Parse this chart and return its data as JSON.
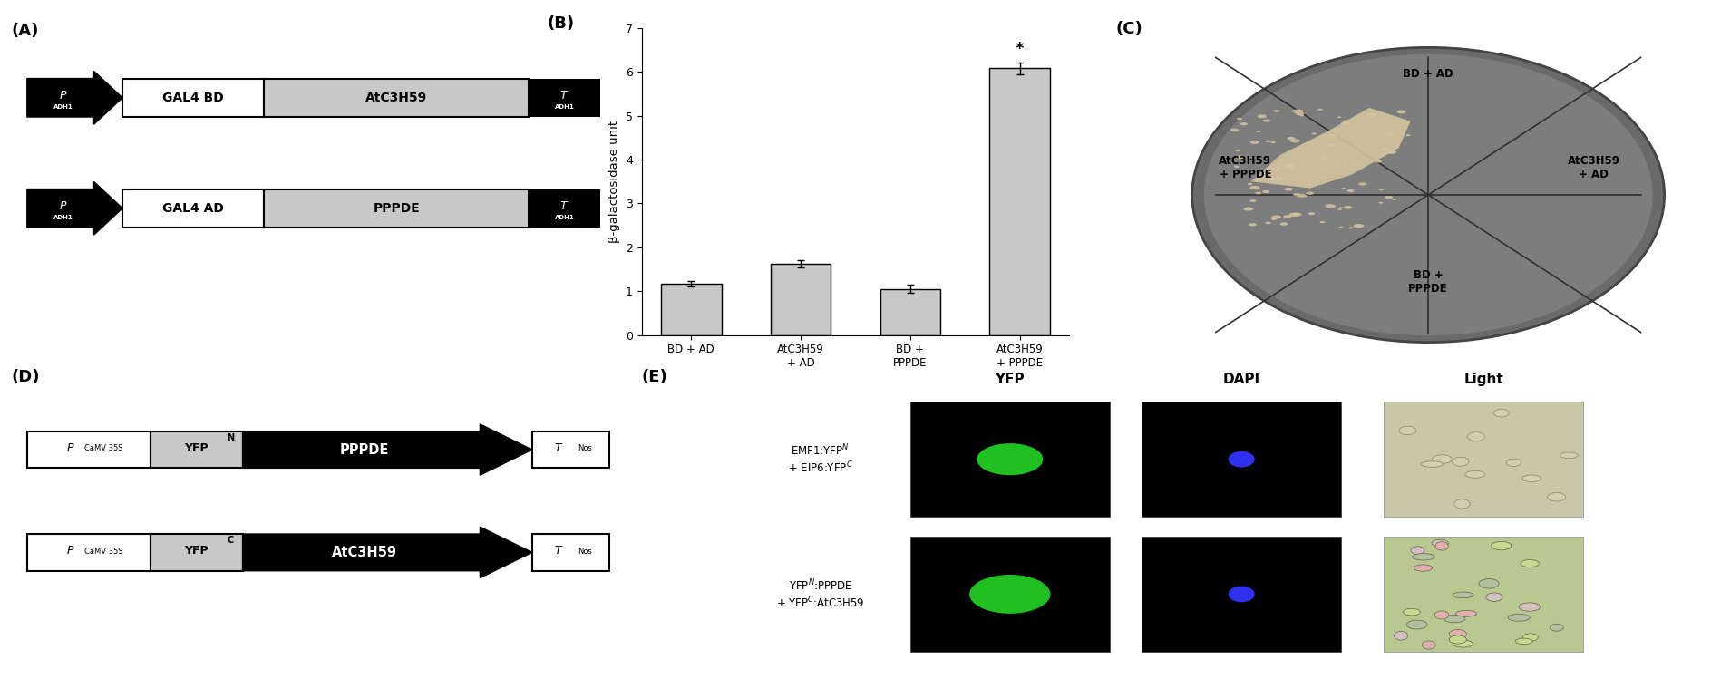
{
  "panel_A": {
    "row1": {
      "box1_text": "GAL4 BD",
      "box2_text": "AtC3H59"
    },
    "row2": {
      "box1_text": "GAL4 AD",
      "box2_text": "PPPDE"
    }
  },
  "panel_B": {
    "categories": [
      "BD + AD",
      "AtC3H59\n+ AD",
      "BD +\nPPPDE",
      "AtC3H59\n+ PPPDE"
    ],
    "values": [
      1.17,
      1.62,
      1.05,
      6.08
    ],
    "errors": [
      0.07,
      0.08,
      0.09,
      0.13
    ],
    "bar_color": "#c8c8c8",
    "ylabel": "β-galactosidase unit",
    "ylim": [
      0,
      7
    ],
    "yticks": [
      0,
      1,
      2,
      3,
      4,
      5,
      6,
      7
    ],
    "star_index": 3
  },
  "panel_D": {
    "row1": {
      "box1_text": "YFP",
      "box1_sup": "N",
      "box2_text": "PPPDE"
    },
    "row2": {
      "box1_text": "YFP",
      "box1_sup": "C",
      "box2_text": "AtC3H59"
    }
  },
  "panel_E": {
    "columns": [
      "YFP",
      "DAPI",
      "Light"
    ],
    "row_labels": [
      "EMF1:YFP$^{N}$\n+ EIP6:YFP$^{C}$",
      "YFP$^{N}$:PPPDE\n+ YFP$^{C}$:AtC3H59"
    ]
  },
  "background_color": "#ffffff",
  "gray_box": "#c8c8c8",
  "black": "#000000",
  "white": "#ffffff"
}
